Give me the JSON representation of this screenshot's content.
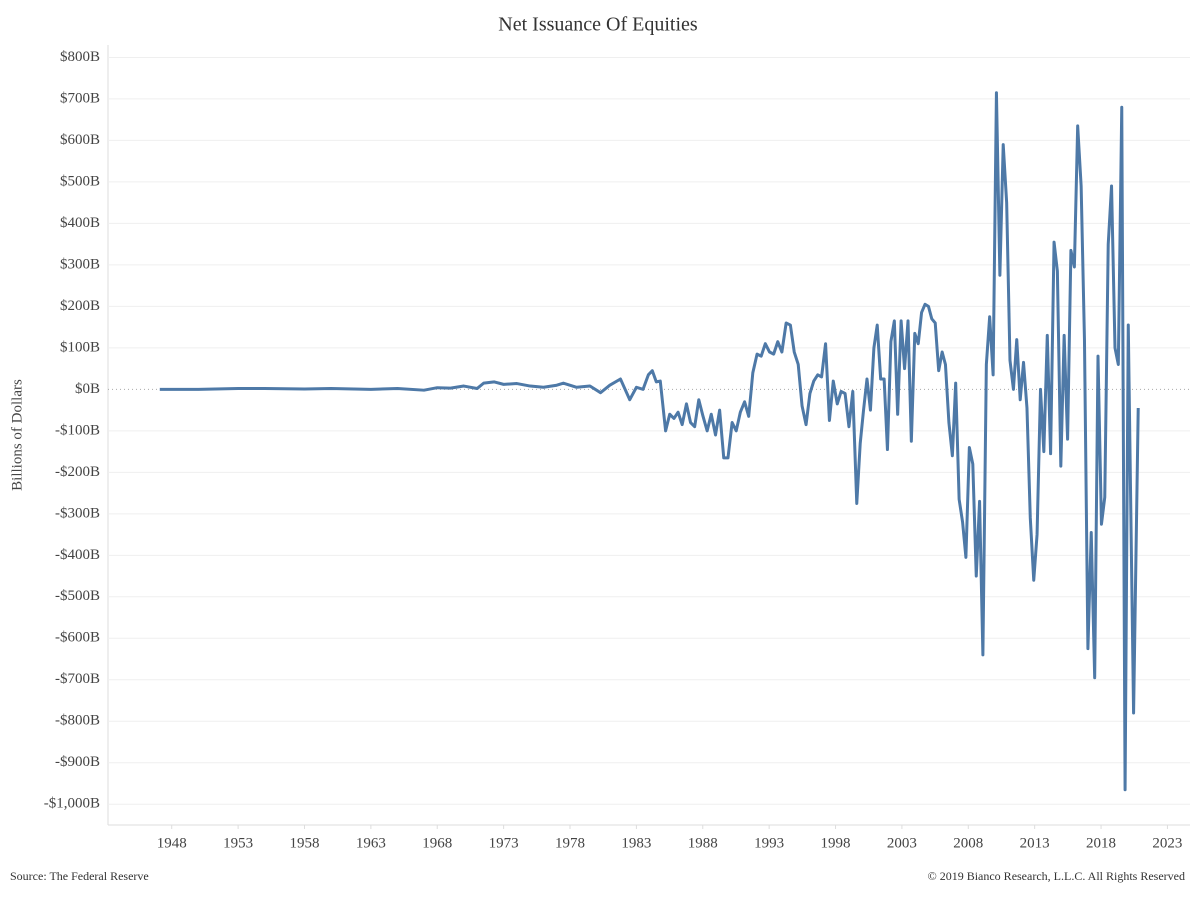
{
  "chart_data": {
    "type": "line",
    "title": "Net Issuance Of Equities",
    "y_label": "Billions of Dollars",
    "source": "Source: The Federal Reserve",
    "copyright": "© 2019 Bianco Research, L.L.C. All Rights Reserved",
    "grid": true,
    "zero_line": true,
    "xlim": [
      1943.2,
      2024.7
    ],
    "ylim": [
      -1050,
      830
    ],
    "xticks": [
      1948,
      1953,
      1958,
      1963,
      1968,
      1973,
      1978,
      1983,
      1988,
      1993,
      1998,
      2003,
      2008,
      2013,
      2018,
      2023
    ],
    "yticks": [
      {
        "value": 800,
        "label": "$800B"
      },
      {
        "value": 700,
        "label": "$700B"
      },
      {
        "value": 600,
        "label": "$600B"
      },
      {
        "value": 500,
        "label": "$500B"
      },
      {
        "value": 400,
        "label": "$400B"
      },
      {
        "value": 300,
        "label": "$300B"
      },
      {
        "value": 200,
        "label": "$200B"
      },
      {
        "value": 100,
        "label": "$100B"
      },
      {
        "value": 0,
        "label": "$0B"
      },
      {
        "value": -100,
        "label": "-$100B"
      },
      {
        "value": -200,
        "label": "-$200B"
      },
      {
        "value": -300,
        "label": "-$300B"
      },
      {
        "value": -400,
        "label": "-$400B"
      },
      {
        "value": -500,
        "label": "-$500B"
      },
      {
        "value": -600,
        "label": "-$600B"
      },
      {
        "value": -700,
        "label": "-$700B"
      },
      {
        "value": -800,
        "label": "-$800B"
      },
      {
        "value": -900,
        "label": "-$900B"
      },
      {
        "value": -1000,
        "label": "-$1,000B"
      }
    ],
    "x": [
      1947.1,
      1950,
      1953,
      1955,
      1958,
      1960,
      1963,
      1965,
      1967,
      1968,
      1969,
      1970,
      1971,
      1971.5,
      1972.3,
      1973,
      1974,
      1975,
      1976,
      1977,
      1977.5,
      1978.5,
      1979.5,
      1980.3,
      1981,
      1981.8,
      1982.5,
      1983,
      1983.5,
      1983.9,
      1984.2,
      1984.5,
      1984.8,
      1985.2,
      1985.51,
      1985.83,
      1986.14,
      1986.45,
      1986.77,
      1987.08,
      1987.39,
      1987.7,
      1988.02,
      1988.33,
      1988.64,
      1988.96,
      1989.27,
      1989.58,
      1989.9,
      1990.21,
      1990.52,
      1990.83,
      1991.15,
      1991.46,
      1991.77,
      1992.09,
      1992.4,
      1992.71,
      1993.03,
      1993.34,
      1993.65,
      1993.96,
      1994.28,
      1994.6,
      1994.89,
      1995.19,
      1995.48,
      1995.78,
      1996.07,
      1996.36,
      1996.66,
      1996.95,
      1997.25,
      1997.54,
      1997.83,
      1998.13,
      1998.42,
      1998.72,
      1999.01,
      1999.3,
      1999.6,
      1999.86,
      2000.11,
      2000.37,
      2000.63,
      2000.89,
      2001.14,
      2001.4,
      2001.66,
      2001.91,
      2002.17,
      2002.43,
      2002.68,
      2002.94,
      2003.2,
      2003.46,
      2003.71,
      2003.97,
      2004.23,
      2004.48,
      2004.74,
      2005.0,
      2005.25,
      2005.51,
      2005.77,
      2006.03,
      2006.28,
      2006.54,
      2006.8,
      2007.05,
      2007.31,
      2007.57,
      2007.82,
      2008.08,
      2008.34,
      2008.6,
      2008.85,
      2009.1,
      2009.36,
      2009.61,
      2009.87,
      2010.12,
      2010.38,
      2010.63,
      2010.89,
      2011.14,
      2011.4,
      2011.65,
      2011.91,
      2012.16,
      2012.42,
      2012.67,
      2012.93,
      2013.18,
      2013.44,
      2013.69,
      2013.95,
      2014.2,
      2014.46,
      2014.71,
      2014.97,
      2015.22,
      2015.48,
      2015.73,
      2015.99,
      2016.24,
      2016.5,
      2016.75,
      2017.01,
      2017.26,
      2017.52,
      2017.77,
      2018.03,
      2018.28,
      2018.54,
      2018.79,
      2019.05,
      2019.3,
      2019.56,
      2019.81,
      2020.05,
      2020.45,
      2020.8
    ],
    "series": [
      {
        "name": "Net Issuance Of Equities",
        "color": "#4e79a7",
        "values": [
          0,
          0,
          2,
          2,
          1,
          2,
          0,
          2,
          -2,
          4,
          3,
          8,
          2,
          15,
          18,
          12,
          14,
          8,
          5,
          10,
          15,
          5,
          8,
          -8,
          10,
          25,
          -25,
          5,
          0,
          35,
          45,
          18,
          20,
          -100,
          -60,
          -70,
          -55,
          -85,
          -35,
          -80,
          -90,
          -25,
          -65,
          -100,
          -60,
          -110,
          -50,
          -165,
          -165,
          -80,
          -100,
          -55,
          -30,
          -65,
          40,
          85,
          80,
          110,
          90,
          85,
          115,
          90,
          160,
          155,
          90,
          60,
          -40,
          -85,
          -10,
          20,
          35,
          30,
          110,
          -75,
          20,
          -35,
          -5,
          -10,
          -90,
          -5,
          -275,
          -130,
          -50,
          25,
          -50,
          100,
          155,
          25,
          25,
          -145,
          115,
          165,
          -60,
          165,
          50,
          165,
          -125,
          135,
          110,
          185,
          205,
          200,
          170,
          160,
          45,
          90,
          60,
          -80,
          -160,
          15,
          -265,
          -320,
          -405,
          -140,
          -180,
          -450,
          -270,
          -640,
          60,
          175,
          35,
          715,
          275,
          590,
          450,
          70,
          0,
          120,
          -25,
          65,
          -45,
          -310,
          -460,
          -350,
          0,
          -150,
          130,
          -155,
          355,
          285,
          -185,
          130,
          -120,
          335,
          295,
          635,
          490,
          120,
          -625,
          -345,
          -695,
          80,
          -325,
          -260,
          350,
          490,
          100,
          60,
          680,
          -965,
          155,
          -780,
          -45
        ]
      }
    ]
  }
}
